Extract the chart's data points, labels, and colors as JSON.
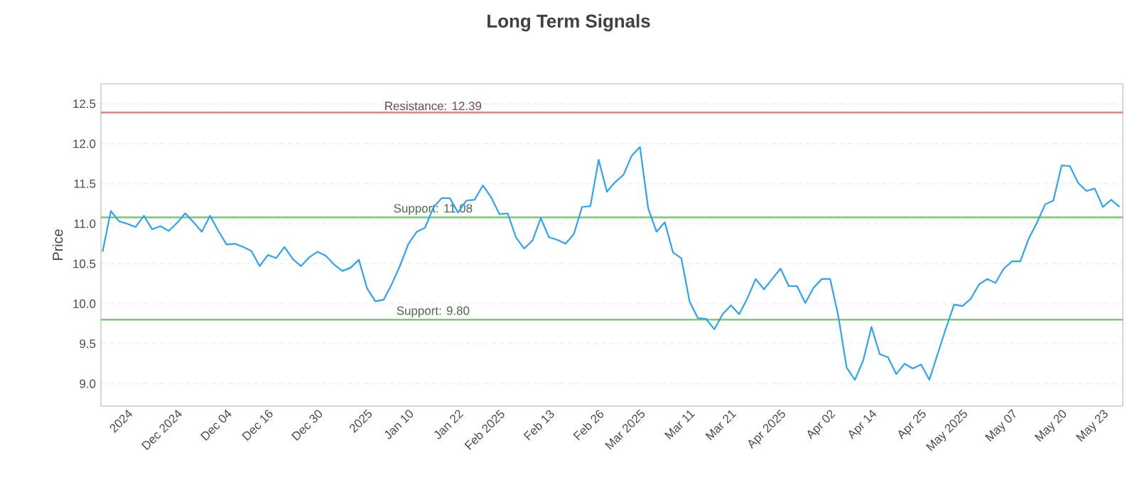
{
  "chart_data": {
    "type": "line",
    "title": "Long Term Signals",
    "ylabel": "Price",
    "categories": [
      null,
      null,
      null,
      "2024",
      null,
      null,
      null,
      null,
      null,
      "Dec 2024",
      null,
      null,
      null,
      null,
      null,
      "Dec 04",
      null,
      null,
      null,
      null,
      "Dec 16",
      null,
      null,
      null,
      null,
      null,
      "Dec 30",
      null,
      null,
      null,
      null,
      null,
      "2025",
      null,
      null,
      null,
      null,
      "Jan 10",
      null,
      null,
      null,
      null,
      null,
      "Jan 22",
      null,
      null,
      null,
      null,
      "Feb 2025",
      null,
      null,
      null,
      null,
      null,
      "Feb 13",
      null,
      null,
      null,
      null,
      null,
      "Feb 26",
      null,
      null,
      null,
      null,
      "Mar 2025",
      null,
      null,
      null,
      null,
      null,
      "Mar 11",
      null,
      null,
      null,
      null,
      "Mar 21",
      null,
      null,
      null,
      null,
      null,
      "Apr 2025",
      null,
      null,
      null,
      null,
      null,
      "Apr 02",
      null,
      null,
      null,
      null,
      "Apr 14",
      null,
      null,
      null,
      null,
      null,
      "Apr 25",
      null,
      null,
      null,
      null,
      "May 2025",
      null,
      null,
      null,
      null,
      null,
      "May 07",
      null,
      null,
      null,
      null,
      null,
      "May 20",
      null,
      null,
      null,
      null,
      "May 23",
      null,
      null
    ],
    "series": [
      {
        "color": "#2ea3f2",
        "values": [
          10.65,
          11.16,
          11.03,
          11.0,
          10.96,
          11.1,
          10.93,
          10.97,
          10.91,
          11.01,
          11.13,
          11.02,
          10.9,
          11.1,
          10.91,
          10.74,
          10.75,
          10.71,
          10.66,
          10.47,
          10.61,
          10.57,
          10.71,
          10.56,
          10.47,
          10.58,
          10.65,
          10.6,
          10.49,
          10.41,
          10.45,
          10.55,
          10.19,
          10.03,
          10.05,
          10.25,
          10.48,
          10.75,
          10.9,
          10.95,
          11.2,
          11.32,
          11.32,
          11.14,
          11.29,
          11.3,
          11.48,
          11.33,
          11.12,
          11.13,
          10.83,
          10.69,
          10.79,
          11.07,
          10.83,
          10.8,
          10.75,
          10.87,
          11.21,
          11.22,
          11.8,
          11.4,
          11.52,
          11.61,
          11.85,
          11.96,
          11.19,
          10.9,
          11.02,
          10.64,
          10.57,
          10.03,
          9.82,
          9.81,
          9.68,
          9.87,
          9.98,
          9.87,
          10.07,
          10.31,
          10.18,
          10.31,
          10.44,
          10.22,
          10.22,
          10.01,
          10.2,
          10.31,
          10.31,
          9.84,
          9.2,
          9.05,
          9.29,
          9.71,
          9.37,
          9.33,
          9.12,
          9.25,
          9.19,
          9.24,
          9.05,
          9.37,
          9.69,
          9.99,
          9.97,
          10.06,
          10.24,
          10.31,
          10.26,
          10.44,
          10.53,
          10.53,
          10.81,
          11.01,
          11.24,
          11.29,
          11.73,
          11.72,
          11.51,
          11.41,
          11.44,
          11.21,
          11.3,
          11.21
        ]
      }
    ],
    "ylim": [
      8.72,
      12.75
    ],
    "yticks": [
      {
        "value": 9,
        "label": "9.0"
      },
      {
        "value": 9.5,
        "label": "9.5"
      },
      {
        "value": 10,
        "label": "10.0"
      },
      {
        "value": 10.5,
        "label": "10.5"
      },
      {
        "value": 11,
        "label": "11.0"
      },
      {
        "value": 11.5,
        "label": "11.5"
      },
      {
        "value": 12,
        "label": "12.0"
      },
      {
        "value": 12.5,
        "label": "12.5"
      }
    ],
    "ref_lines": [
      {
        "axis": "y",
        "value": 12.39,
        "label": "Resistance: 12.39",
        "color": "#e08080"
      },
      {
        "axis": "y",
        "value": 11.08,
        "label": "Support: 11.08",
        "color": "#80c880"
      },
      {
        "axis": "y",
        "value": 9.8,
        "label": "Support: 9.80",
        "color": "#80c880"
      }
    ],
    "grid": "y",
    "marker": "none",
    "line_style": "solid"
  }
}
